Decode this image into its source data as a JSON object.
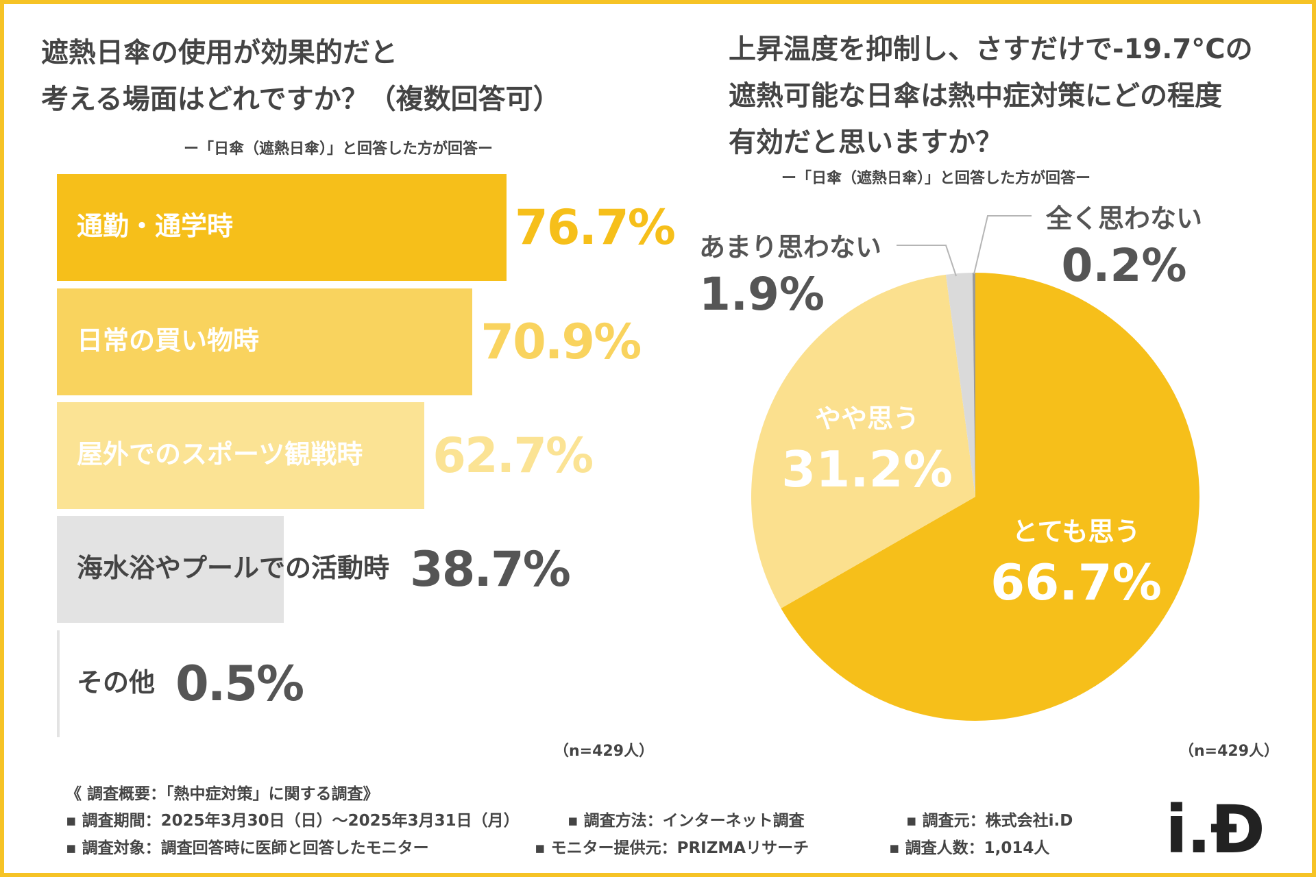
{
  "left_chart": {
    "title_lines": [
      "遮熱日傘の使用が効果的だと",
      "考える場面はどれですか？（複数回答可）"
    ],
    "respondent_note": "ー「日傘（遮熱日傘）」と回答した方が回答ー",
    "n_note": "（n=429人）"
  },
  "right_chart": {
    "title_lines": [
      "上昇温度を抑制し、さすだけで-19.7°Cの",
      "遮熱可能な日傘は熱中症対策にどの程度",
      "有効だと思いますか？"
    ],
    "respondent_note": "ー「日傘（遮熱日傘）」と回答した方が回答ー",
    "n_note": "（n=429人）"
  },
  "chart_data": [
    {
      "type": "bar",
      "orientation": "horizontal",
      "title": "遮熱日傘の使用が効果的だと考える場面はどれですか？（複数回答可）",
      "categories": [
        "通勤・通学時",
        "日常の買い物時",
        "屋外でのスポーツ観戦時",
        "海水浴やプールでの活動時",
        "その他"
      ],
      "values": [
        76.7,
        70.9,
        62.7,
        38.7,
        0.5
      ],
      "value_labels": [
        "76.7%",
        "70.9%",
        "62.7%",
        "38.7%",
        "0.5%"
      ],
      "colors": [
        "#f6bf1a",
        "#f9d35e",
        "#fbe394",
        "#e3e3e3",
        "#e3e3e3"
      ],
      "label_colors": [
        "#ffffff",
        "#ffffff",
        "#ffffff",
        "#444444",
        "#444444"
      ],
      "value_colors": [
        "#f6bf1a",
        "#f9d35e",
        "#fbe394",
        "#555555",
        "#555555"
      ],
      "xlim": [
        0,
        100
      ]
    },
    {
      "type": "pie",
      "title": "上昇温度を抑制し、さすだけで-19.7°Cの遮熱可能な日傘は熱中症対策にどの程度有効だと思いますか？",
      "categories": [
        "とても思う",
        "やや思う",
        "あまり思わない",
        "全く思わない"
      ],
      "values": [
        66.7,
        31.2,
        1.9,
        0.2
      ],
      "value_labels": [
        "66.7%",
        "31.2%",
        "1.9%",
        "0.2%"
      ],
      "colors": [
        "#f6bf1a",
        "#fbe08e",
        "#dadada",
        "#9a9a9a"
      ]
    }
  ],
  "footer": {
    "summary": "《 調査概要：「熱中症対策」に関する調査》",
    "period": "▪ 調査期間：2025年3月30日（日）〜2025年3月31日（月）",
    "method": "▪ 調査方法：インターネット調査",
    "source": "▪ 調査元：株式会社i.D",
    "target": "▪ 調査対象：調査回答時に医師と回答したモニター",
    "provider": "▪ モニター提供元：PRIZMAリサーチ",
    "count": "▪ 調査人数：1,014人"
  },
  "logo": "i.Đ"
}
